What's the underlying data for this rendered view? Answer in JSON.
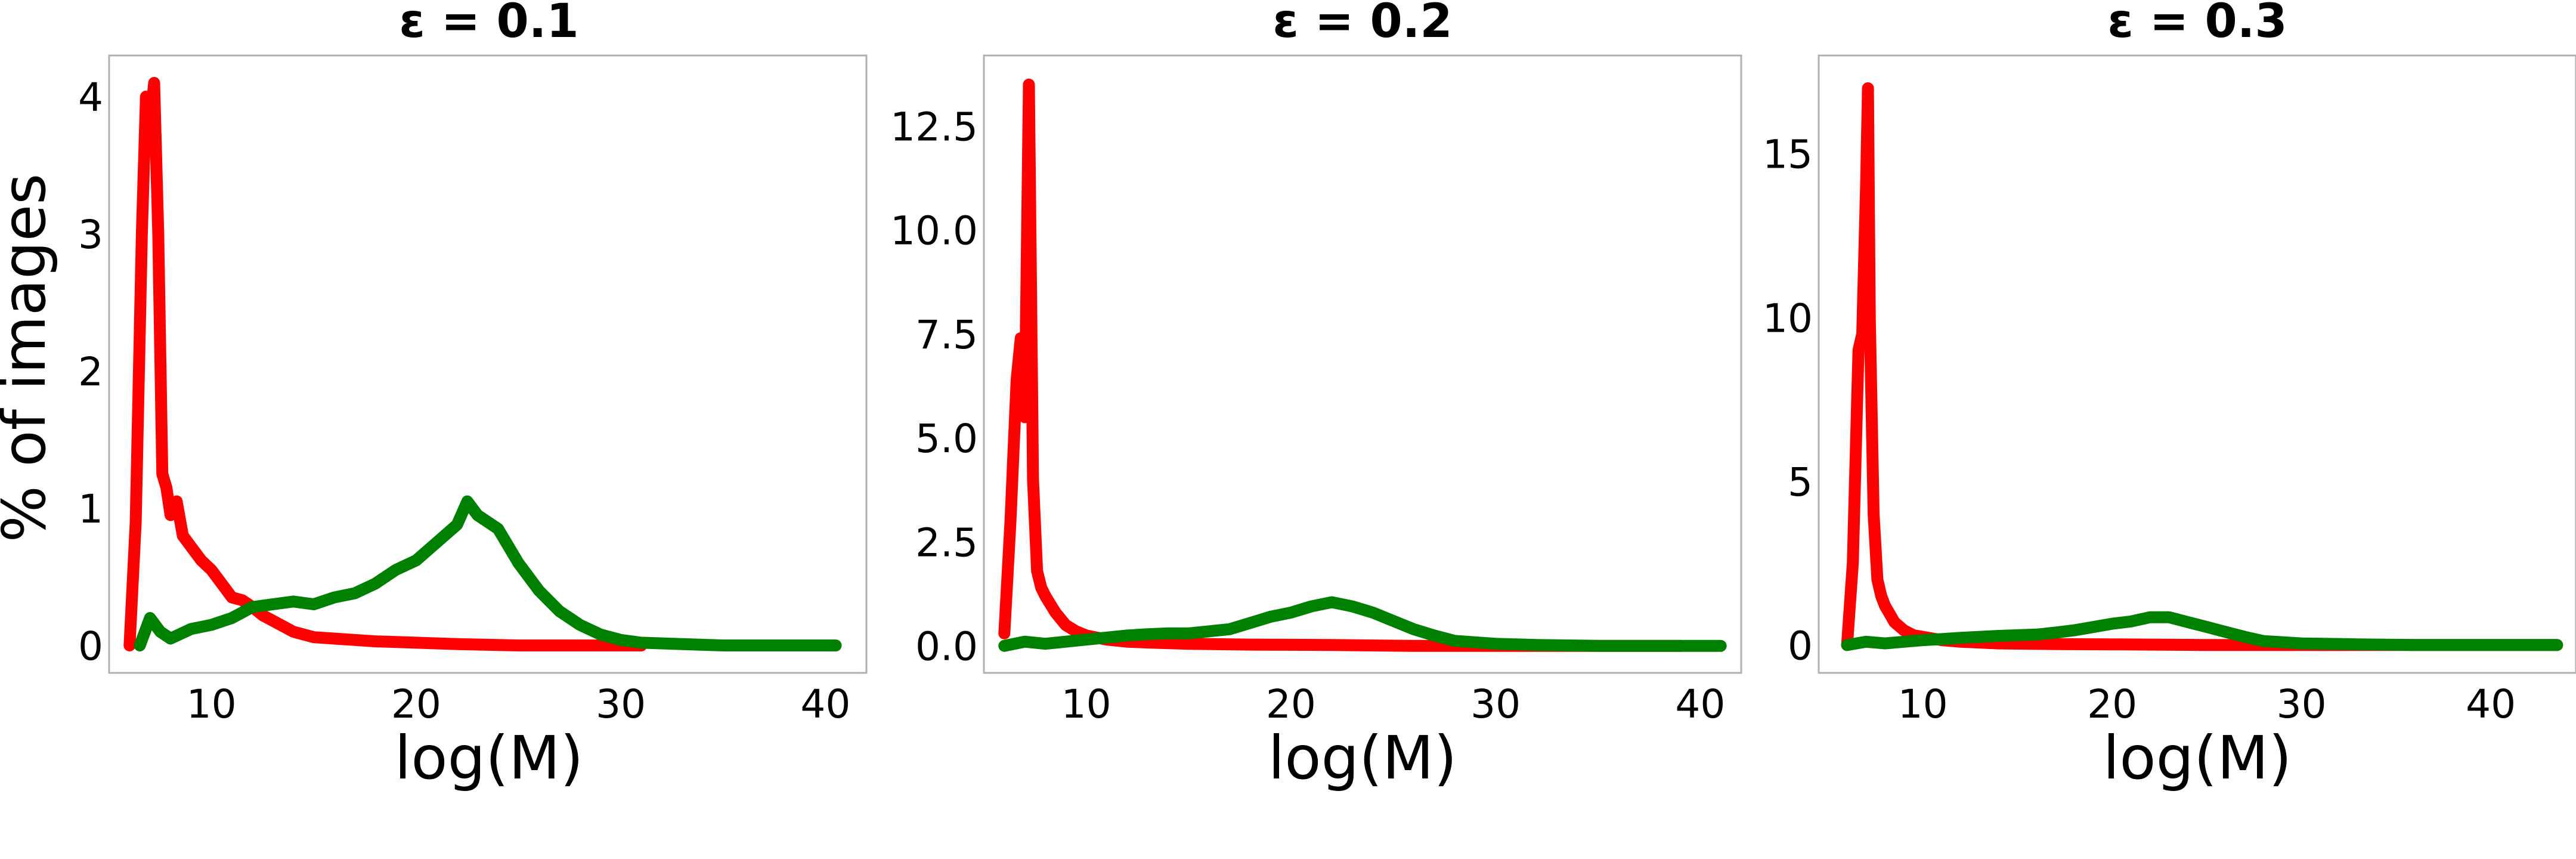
{
  "figure": {
    "ylabel": "% of images"
  },
  "colors": {
    "red_series": "#ff0000",
    "green_series": "#008000",
    "frame": "#b0b0b0",
    "background": "#ffffff"
  },
  "chart_data": [
    {
      "type": "line",
      "title": "ε = 0.1",
      "xlabel": "log(M)",
      "ylabel": "% of images",
      "xlim": [
        5,
        42
      ],
      "ylim": [
        -0.2,
        4.3
      ],
      "xticks": [
        10,
        20,
        30,
        40
      ],
      "yticks": [
        0,
        1,
        2,
        3,
        4
      ],
      "ytick_labels": [
        "0",
        "1",
        "2",
        "3",
        "4"
      ],
      "grid": false,
      "series": [
        {
          "color": "#ff0000",
          "x": [
            6.0,
            6.3,
            6.6,
            6.8,
            7.0,
            7.2,
            7.4,
            7.6,
            7.8,
            8.0,
            8.3,
            8.6,
            9.0,
            9.5,
            10.0,
            10.5,
            11.0,
            11.5,
            12.0,
            12.5,
            13.0,
            13.5,
            14.0,
            15.0,
            16.0,
            17.0,
            18.0,
            20.0,
            22.0,
            25.0,
            28.0,
            31.0
          ],
          "y": [
            0.0,
            0.9,
            3.0,
            4.0,
            3.8,
            4.1,
            3.0,
            1.25,
            1.15,
            0.95,
            1.05,
            0.8,
            0.72,
            0.62,
            0.55,
            0.45,
            0.35,
            0.33,
            0.28,
            0.22,
            0.18,
            0.14,
            0.1,
            0.06,
            0.05,
            0.04,
            0.03,
            0.02,
            0.01,
            0.0,
            0.0,
            0.0
          ]
        },
        {
          "color": "#008000",
          "x": [
            6.5,
            7.0,
            7.5,
            8.0,
            9.0,
            10.0,
            11.0,
            12.0,
            13.0,
            14.0,
            15.0,
            16.0,
            17.0,
            18.0,
            19.0,
            20.0,
            21.0,
            22.0,
            22.5,
            23.0,
            24.0,
            25.0,
            26.0,
            27.0,
            28.0,
            29.0,
            30.0,
            31.0,
            33.0,
            35.0,
            38.0,
            40.5
          ],
          "y": [
            0.0,
            0.2,
            0.1,
            0.05,
            0.12,
            0.15,
            0.2,
            0.28,
            0.3,
            0.32,
            0.3,
            0.35,
            0.38,
            0.45,
            0.55,
            0.62,
            0.75,
            0.88,
            1.05,
            0.95,
            0.85,
            0.6,
            0.4,
            0.25,
            0.15,
            0.08,
            0.04,
            0.02,
            0.01,
            0.0,
            0.0,
            0.0
          ]
        }
      ]
    },
    {
      "type": "line",
      "title": "ε = 0.2",
      "xlabel": "log(M)",
      "xlim": [
        5,
        42
      ],
      "ylim": [
        -0.65,
        14.2
      ],
      "xticks": [
        10,
        20,
        30,
        40
      ],
      "yticks": [
        0,
        2.5,
        5,
        7.5,
        10,
        12.5
      ],
      "ytick_labels": [
        "0.0",
        "2.5",
        "5.0",
        "7.5",
        "10.0",
        "12.5"
      ],
      "grid": false,
      "series": [
        {
          "color": "#ff0000",
          "x": [
            6.0,
            6.3,
            6.6,
            6.8,
            7.0,
            7.2,
            7.4,
            7.6,
            7.8,
            8.0,
            8.5,
            9.0,
            9.5,
            10.0,
            11.0,
            12.0,
            13.0,
            15.0,
            18.0,
            22.0,
            26.0,
            30.0,
            35.0,
            39.0
          ],
          "y": [
            0.3,
            3.0,
            6.4,
            7.4,
            5.5,
            13.5,
            4.0,
            1.8,
            1.4,
            1.2,
            0.8,
            0.5,
            0.35,
            0.25,
            0.15,
            0.1,
            0.08,
            0.05,
            0.03,
            0.02,
            0.0,
            0.0,
            0.0,
            0.0
          ]
        },
        {
          "color": "#008000",
          "x": [
            6.0,
            7.0,
            8.0,
            9.0,
            10.0,
            11.0,
            12.0,
            13.0,
            14.0,
            15.0,
            16.0,
            17.0,
            18.0,
            19.0,
            20.0,
            21.0,
            22.0,
            23.0,
            24.0,
            25.0,
            26.0,
            27.0,
            28.0,
            30.0,
            32.0,
            35.0,
            38.0,
            41.0
          ],
          "y": [
            0.0,
            0.1,
            0.05,
            0.1,
            0.15,
            0.2,
            0.25,
            0.28,
            0.3,
            0.3,
            0.35,
            0.4,
            0.55,
            0.7,
            0.8,
            0.95,
            1.05,
            0.95,
            0.8,
            0.6,
            0.4,
            0.25,
            0.12,
            0.05,
            0.02,
            0.0,
            0.0,
            0.0
          ]
        }
      ]
    },
    {
      "type": "line",
      "title": "ε = 0.3",
      "xlabel": "log(M)",
      "xlim": [
        4.5,
        44.5
      ],
      "ylim": [
        -0.85,
        18.0
      ],
      "xticks": [
        10,
        20,
        30,
        40
      ],
      "yticks": [
        0,
        5,
        10,
        15
      ],
      "ytick_labels": [
        "0",
        "5",
        "10",
        "15"
      ],
      "grid": false,
      "series": [
        {
          "color": "#ff0000",
          "x": [
            6.0,
            6.3,
            6.6,
            6.8,
            7.0,
            7.1,
            7.2,
            7.4,
            7.6,
            7.8,
            8.0,
            8.5,
            9.0,
            9.5,
            10.0,
            11.0,
            12.0,
            14.0,
            17.0,
            20.0,
            25.0,
            30.0,
            36.0,
            40.0,
            43.5
          ],
          "y": [
            0.0,
            2.5,
            9.0,
            9.5,
            14.0,
            17.0,
            10.0,
            4.0,
            2.0,
            1.5,
            1.2,
            0.7,
            0.45,
            0.3,
            0.25,
            0.15,
            0.1,
            0.05,
            0.03,
            0.02,
            0.0,
            0.0,
            0.0,
            0.0,
            0.0
          ]
        },
        {
          "color": "#008000",
          "x": [
            6.0,
            7.0,
            8.0,
            9.0,
            10.0,
            11.0,
            12.0,
            13.0,
            14.0,
            15.0,
            16.0,
            17.0,
            18.0,
            19.0,
            20.0,
            21.0,
            22.0,
            23.0,
            24.0,
            25.0,
            26.0,
            27.0,
            28.0,
            30.0,
            33.0,
            36.0,
            40.0,
            43.5
          ],
          "y": [
            0.0,
            0.1,
            0.05,
            0.1,
            0.15,
            0.18,
            0.22,
            0.25,
            0.28,
            0.3,
            0.32,
            0.38,
            0.45,
            0.55,
            0.65,
            0.72,
            0.85,
            0.85,
            0.7,
            0.55,
            0.4,
            0.25,
            0.12,
            0.05,
            0.02,
            0.0,
            0.0,
            0.0
          ]
        }
      ]
    }
  ]
}
